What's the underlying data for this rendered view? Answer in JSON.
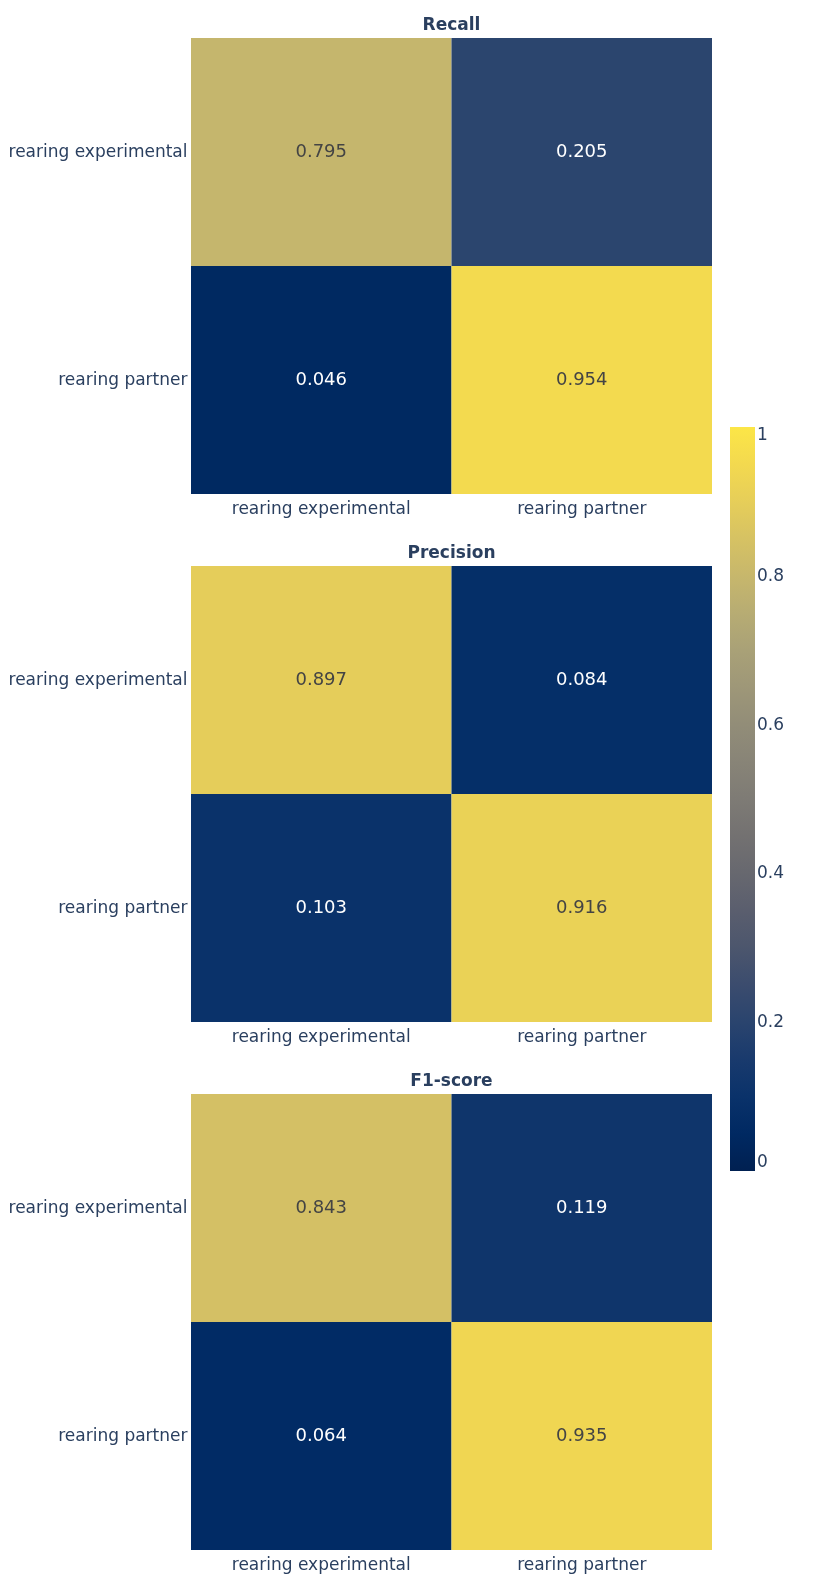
{
  "chart_data": [
    {
      "type": "heatmap",
      "title": "Recall",
      "categories": [
        "rearing experimental",
        "rearing partner"
      ],
      "y_categories": [
        "rearing experimental",
        "rearing partner"
      ],
      "cells": [
        [
          0.795,
          0.205
        ],
        [
          0.046,
          0.954
        ]
      ],
      "data_labels": true,
      "clim": [
        0,
        1
      ],
      "cticks": [
        0,
        0.2,
        0.4,
        0.6,
        0.8,
        1
      ]
    },
    {
      "type": "heatmap",
      "title": "Precision",
      "categories": [
        "rearing experimental",
        "rearing partner"
      ],
      "y_categories": [
        "rearing experimental",
        "rearing partner"
      ],
      "cells": [
        [
          0.897,
          0.084
        ],
        [
          0.103,
          0.916
        ]
      ],
      "data_labels": true
    },
    {
      "type": "heatmap",
      "title": "F1-score",
      "categories": [
        "rearing experimental",
        "rearing partner"
      ],
      "y_categories": [
        "rearing experimental",
        "rearing partner"
      ],
      "cells": [
        [
          0.843,
          0.119
        ],
        [
          0.064,
          0.935
        ]
      ],
      "data_labels": true
    }
  ]
}
